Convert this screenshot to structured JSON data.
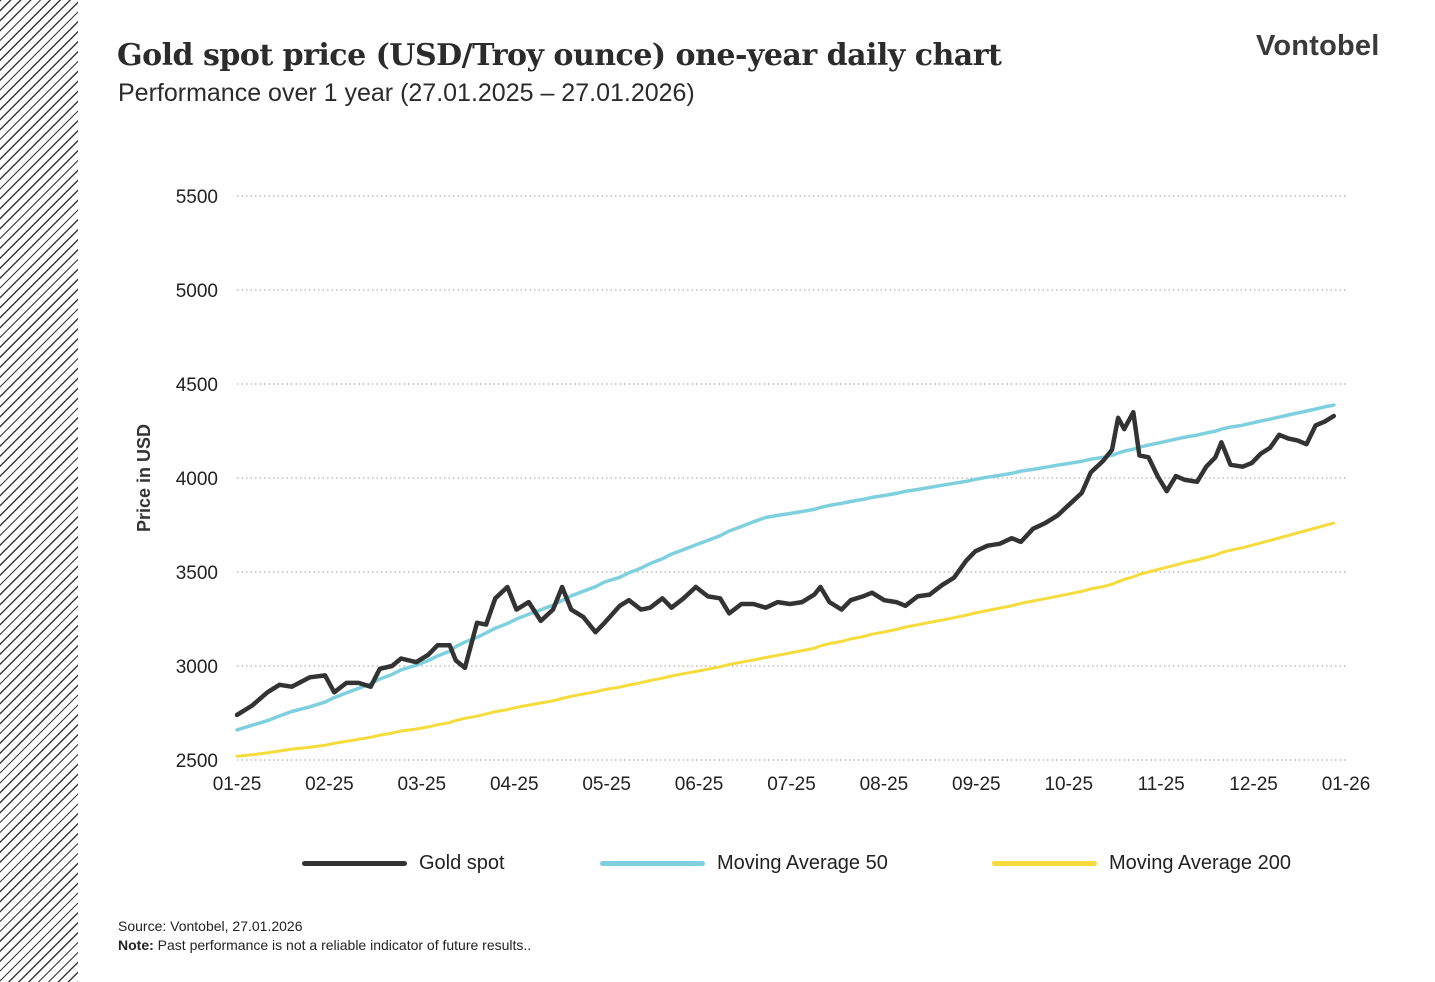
{
  "title": "Gold spot price (USD/Troy ounce) one-year daily chart",
  "subtitle": "Performance over 1 year (27.01.2025 – 27.01.2026)",
  "brand": "Vontobel",
  "footer": {
    "source": "Source: Vontobel, 27.01.2026",
    "note_label": "Note:",
    "note_text": " Past performance is not a reliable indicator of future results.."
  },
  "colors": {
    "gold_spot": "#333333",
    "ma50": "#7fd0df",
    "ma200": "#f5dc3c",
    "grid": "#9a9a9a"
  },
  "chart_data": {
    "type": "line",
    "title": "Gold spot price (USD/Troy ounce) one-year daily chart",
    "xlabel": "",
    "ylabel": "Price in USD",
    "ylim": [
      2500,
      5500
    ],
    "y_ticks": [
      2500,
      3000,
      3500,
      4000,
      4500,
      5000,
      5500
    ],
    "x_ticks": [
      "01-25",
      "02-25",
      "03-25",
      "04-25",
      "05-25",
      "06-25",
      "07-25",
      "08-25",
      "09-25",
      "10-25",
      "11-25",
      "12-25",
      "01-26"
    ],
    "grid": "horizontal dotted",
    "legend_position": "bottom",
    "series": [
      {
        "name": "Gold spot",
        "color": "#333333",
        "points": [
          [
            "2025-01-27",
            2740
          ],
          [
            "2025-02-01",
            2790
          ],
          [
            "2025-02-06",
            2860
          ],
          [
            "2025-02-10",
            2900
          ],
          [
            "2025-02-14",
            2890
          ],
          [
            "2025-02-20",
            2940
          ],
          [
            "2025-02-25",
            2950
          ],
          [
            "2025-02-28",
            2860
          ],
          [
            "2025-03-04",
            2910
          ],
          [
            "2025-03-08",
            2910
          ],
          [
            "2025-03-12",
            2890
          ],
          [
            "2025-03-15",
            2985
          ],
          [
            "2025-03-19",
            3000
          ],
          [
            "2025-03-22",
            3040
          ],
          [
            "2025-03-27",
            3020
          ],
          [
            "2025-03-31",
            3060
          ],
          [
            "2025-04-03",
            3110
          ],
          [
            "2025-04-07",
            3110
          ],
          [
            "2025-04-09",
            3030
          ],
          [
            "2025-04-12",
            2990
          ],
          [
            "2025-04-16",
            3230
          ],
          [
            "2025-04-19",
            3220
          ],
          [
            "2025-04-22",
            3360
          ],
          [
            "2025-04-26",
            3420
          ],
          [
            "2025-04-29",
            3300
          ],
          [
            "2025-05-03",
            3340
          ],
          [
            "2025-05-07",
            3240
          ],
          [
            "2025-05-11",
            3300
          ],
          [
            "2025-05-14",
            3420
          ],
          [
            "2025-05-17",
            3300
          ],
          [
            "2025-05-21",
            3260
          ],
          [
            "2025-05-25",
            3180
          ],
          [
            "2025-05-28",
            3230
          ],
          [
            "2025-06-02",
            3320
          ],
          [
            "2025-06-05",
            3350
          ],
          [
            "2025-06-09",
            3300
          ],
          [
            "2025-06-12",
            3310
          ],
          [
            "2025-06-16",
            3360
          ],
          [
            "2025-06-19",
            3310
          ],
          [
            "2025-06-23",
            3360
          ],
          [
            "2025-06-27",
            3420
          ],
          [
            "2025-07-01",
            3370
          ],
          [
            "2025-07-05",
            3360
          ],
          [
            "2025-07-08",
            3280
          ],
          [
            "2025-07-12",
            3330
          ],
          [
            "2025-07-16",
            3330
          ],
          [
            "2025-07-20",
            3310
          ],
          [
            "2025-07-24",
            3340
          ],
          [
            "2025-07-28",
            3330
          ],
          [
            "2025-08-01",
            3340
          ],
          [
            "2025-08-05",
            3380
          ],
          [
            "2025-08-07",
            3420
          ],
          [
            "2025-08-10",
            3340
          ],
          [
            "2025-08-14",
            3300
          ],
          [
            "2025-08-17",
            3350
          ],
          [
            "2025-08-21",
            3370
          ],
          [
            "2025-08-24",
            3390
          ],
          [
            "2025-08-28",
            3350
          ],
          [
            "2025-09-01",
            3340
          ],
          [
            "2025-09-04",
            3320
          ],
          [
            "2025-09-08",
            3370
          ],
          [
            "2025-09-12",
            3380
          ],
          [
            "2025-09-16",
            3430
          ],
          [
            "2025-09-20",
            3470
          ],
          [
            "2025-09-24",
            3560
          ],
          [
            "2025-09-27",
            3610
          ],
          [
            "2025-10-01",
            3640
          ],
          [
            "2025-10-05",
            3650
          ],
          [
            "2025-10-09",
            3680
          ],
          [
            "2025-10-12",
            3660
          ],
          [
            "2025-10-16",
            3730
          ],
          [
            "2025-10-20",
            3760
          ],
          [
            "2025-10-24",
            3800
          ],
          [
            "2025-10-28",
            3860
          ],
          [
            "2025-11-01",
            3920
          ],
          [
            "2025-11-04",
            4030
          ],
          [
            "2025-11-08",
            4090
          ],
          [
            "2025-11-11",
            4150
          ],
          [
            "2025-11-13",
            4320
          ],
          [
            "2025-11-15",
            4260
          ],
          [
            "2025-11-18",
            4350
          ],
          [
            "2025-11-20",
            4120
          ],
          [
            "2025-11-23",
            4110
          ],
          [
            "2025-11-26",
            4010
          ],
          [
            "2025-11-29",
            3930
          ],
          [
            "2025-12-02",
            4010
          ],
          [
            "2025-12-05",
            3990
          ],
          [
            "2025-12-09",
            3980
          ],
          [
            "2025-12-12",
            4060
          ],
          [
            "2025-12-15",
            4110
          ],
          [
            "2025-12-17",
            4190
          ],
          [
            "2025-12-20",
            4070
          ],
          [
            "2025-12-24",
            4060
          ],
          [
            "2025-12-27",
            4080
          ],
          [
            "2025-12-30",
            4130
          ],
          [
            "2026-01-02",
            4160
          ],
          [
            "2026-01-05",
            4230
          ],
          [
            "2026-01-08",
            4210
          ],
          [
            "2026-01-11",
            4200
          ],
          [
            "2026-01-14",
            4180
          ],
          [
            "2026-01-17",
            4280
          ],
          [
            "2026-01-20",
            4300
          ],
          [
            "2026-01-23",
            4330
          ]
        ]
      }
    ]
  }
}
